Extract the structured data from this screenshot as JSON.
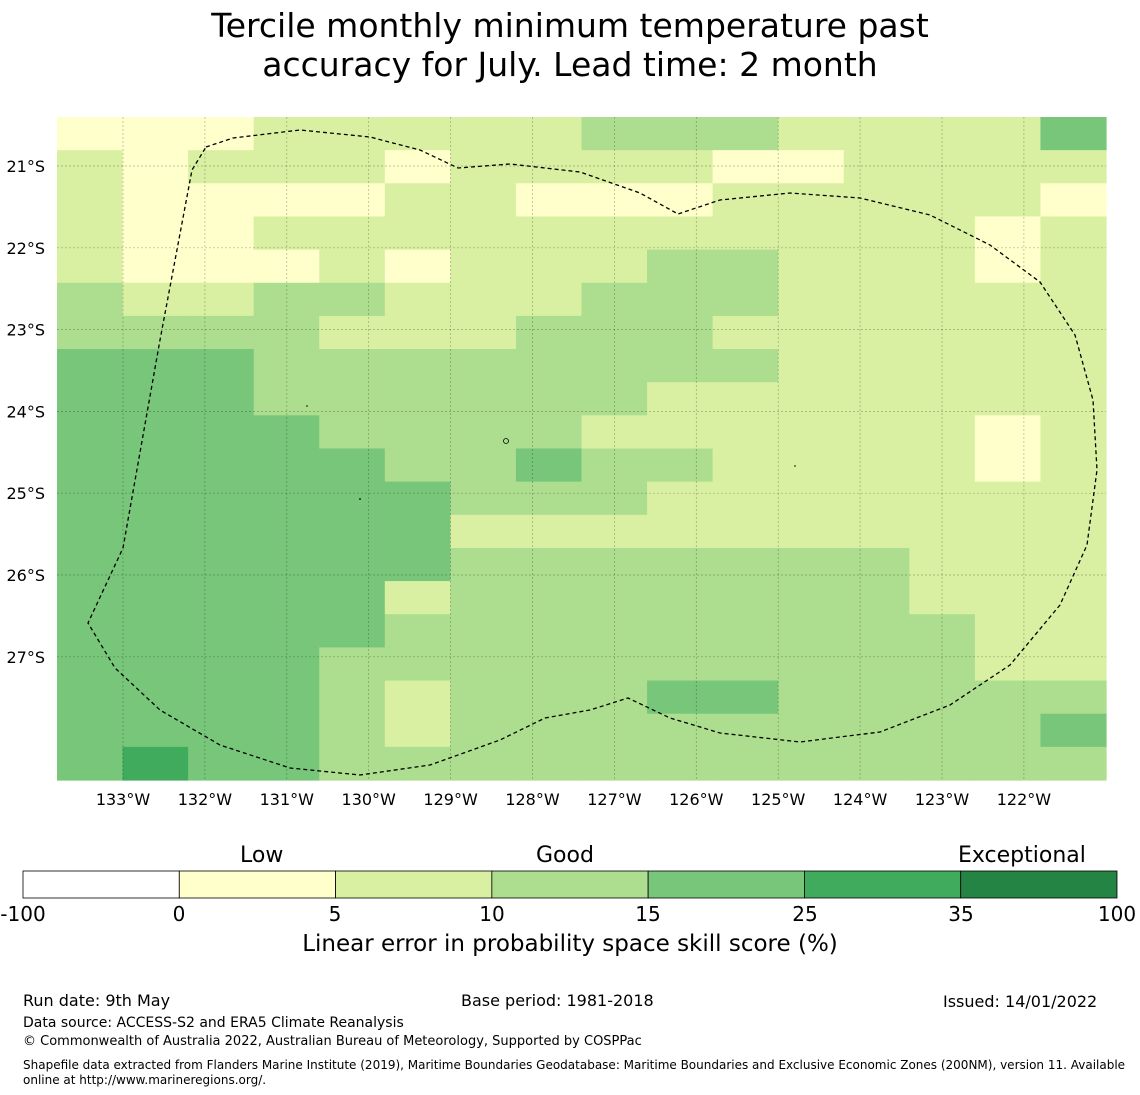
{
  "title_line1": "Tercile monthly minimum temperature past",
  "title_line2": "accuracy for July. Lead time: 2 month",
  "map": {
    "lat_labels": [
      "21°S",
      "22°S",
      "23°S",
      "24°S",
      "25°S",
      "26°S",
      "27°S"
    ],
    "lon_labels": [
      "133°W",
      "132°W",
      "131°W",
      "130°W",
      "129°W",
      "128°W",
      "127°W",
      "126°W",
      "125°W",
      "124°W",
      "123°W",
      "122°W"
    ],
    "category_colors": [
      "#ffffff",
      "#ffffcc",
      "#d9f0a3",
      "#addd8e",
      "#78c679",
      "#41ab5d",
      "#238443"
    ],
    "grid_rows": [
      "1112222233322224",
      "2122212222112222",
      "2111122111222221",
      "2112222222222212",
      "2111212223322212",
      "3223322233322222",
      "3333222333222222",
      "4443333333322222",
      "4443333332222222",
      "4444333322222212",
      "4444433433222212",
      "4444443332222222",
      "4444442222222222",
      "4444443333333222",
      "4444423333333222",
      "4444433333333322",
      "4444333333333322",
      "4444323334433333",
      "4444323333333334",
      "4544333333333333"
    ]
  },
  "colorbar": {
    "categories": [
      "Low",
      "Good",
      "Exceptional"
    ],
    "ticks": [
      "-100",
      "0",
      "5",
      "10",
      "15",
      "25",
      "35",
      "100"
    ],
    "colors": [
      "#ffffff",
      "#ffffcc",
      "#d9f0a3",
      "#addd8e",
      "#78c679",
      "#41ab5d",
      "#238443"
    ],
    "label": "Linear error in probability space skill score (%)"
  },
  "footer": {
    "run_date": "Run date: 9th May",
    "base_period": "Base period: 1981-2018",
    "issued": "Issued: 14/01/2022",
    "data_source": "Data source: ACCESS-S2 and ERA5 Climate Reanalysis",
    "copyright": "© Commonwealth of Australia 2022, Australian Bureau of Meteorology, Supported by COSPPac",
    "shapefile_line1": "Shapefile data extracted from Flanders Marine Institute (2019), Maritime Boundaries Geodatabase: Maritime Boundaries and Exclusive Economic Zones (200NM), version 11. Available",
    "shapefile_line2": "online at http://www.marineregions.org/."
  }
}
